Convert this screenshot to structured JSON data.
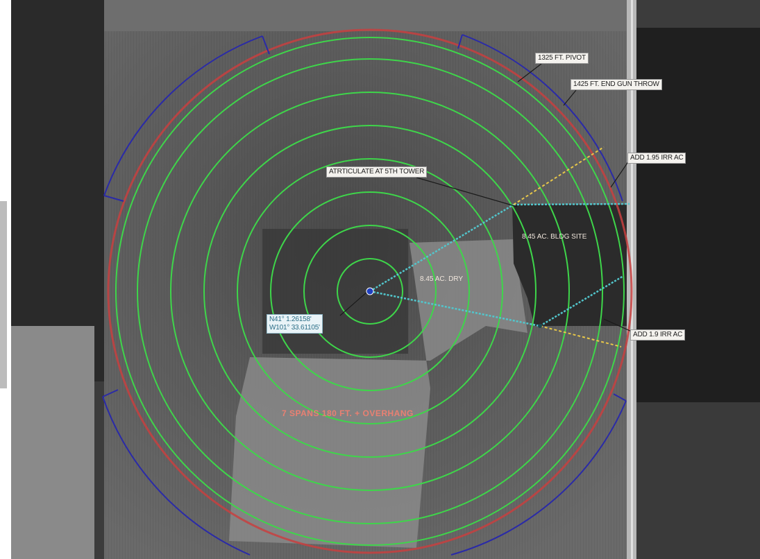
{
  "labels": {
    "pivot": "1325 FT. PIVOT",
    "end_gun": "1425 FT. END GUN THROW",
    "add_top": "ADD 1.95 IRR AC",
    "articulate": "ATRTICULATE AT 5TH TOWER",
    "bldg_site": "8.45 AC. BLDG SITE",
    "dry": "8.45 AC. DRY",
    "coord_lat": "N41° 1.26158'",
    "coord_lon": "W101° 33.61105'",
    "add_bottom": "ADD 1.9 IRR AC",
    "spans": "7 SPANS 180 FT. + OVERHANG"
  },
  "colors": {
    "span_rings": "#3ed64a",
    "pivot_circle": "#c84040",
    "end_gun_arcs": "#2a2aa8",
    "articulation_line": "#52c6cc",
    "corner_line": "#e8c84a",
    "pivot_point": "#2040c0"
  }
}
